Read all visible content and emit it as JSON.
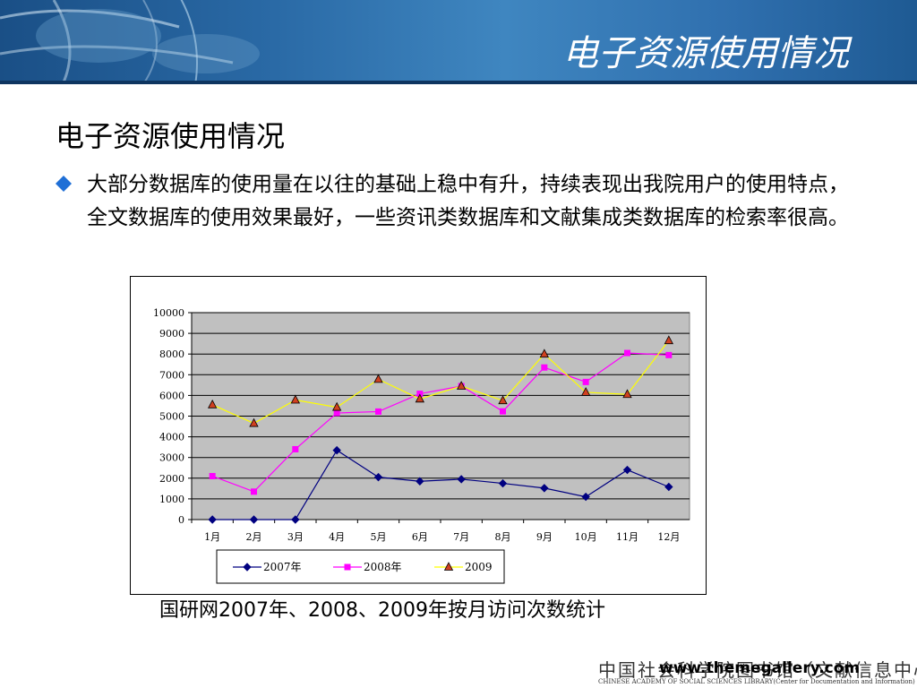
{
  "banner": {
    "title": "电子资源使用情况"
  },
  "heading": "电子资源使用情况",
  "bullet_text": "大部分数据库的使用量在以往的基础上稳中有升，持续表现出我院用户的使用特点，全文数据库的使用效果最好，一些资讯类数据库和文献集成类数据库的检索率很高。",
  "caption": "国研网2007年、2008、2009年按月访问次数统计",
  "footer": {
    "library_cn": "中国社会科学院图书馆（文献信息中心）",
    "library_en": "CHINESE ACADEMY OF SOCIAL SCIENCES LIBRARY(Center for Documentation and Information)",
    "url": "www.themegallery.com"
  },
  "colors": {
    "series_2007": "#000080",
    "series_2008": "#ff00ff",
    "series_2009": "#ffff00",
    "plot_bg": "#c0c0c0",
    "banner": "#2a6aa6",
    "bullet": "#1f6fd6"
  },
  "chart_data": {
    "type": "line",
    "categories": [
      "1月",
      "2月",
      "3月",
      "4月",
      "5月",
      "6月",
      "7月",
      "8月",
      "9月",
      "10月",
      "11月",
      "12月"
    ],
    "ylim": [
      0,
      10000
    ],
    "yticks": [
      0,
      1000,
      2000,
      3000,
      4000,
      5000,
      6000,
      7000,
      8000,
      9000,
      10000
    ],
    "grid": true,
    "legend_position": "bottom",
    "series": [
      {
        "name": "2007年",
        "marker": "diamond",
        "values": [
          0,
          0,
          0,
          3350,
          2050,
          1850,
          1950,
          1750,
          1520,
          1100,
          2400,
          1580
        ]
      },
      {
        "name": "2008年",
        "marker": "square",
        "values": [
          2100,
          1350,
          3400,
          5150,
          5220,
          6080,
          6450,
          5230,
          7350,
          6650,
          8050,
          7950
        ]
      },
      {
        "name": "2009",
        "marker": "triangle",
        "values": [
          5550,
          4650,
          5780,
          5430,
          6780,
          5830,
          6450,
          5750,
          8000,
          6150,
          6050,
          8650
        ]
      }
    ]
  }
}
